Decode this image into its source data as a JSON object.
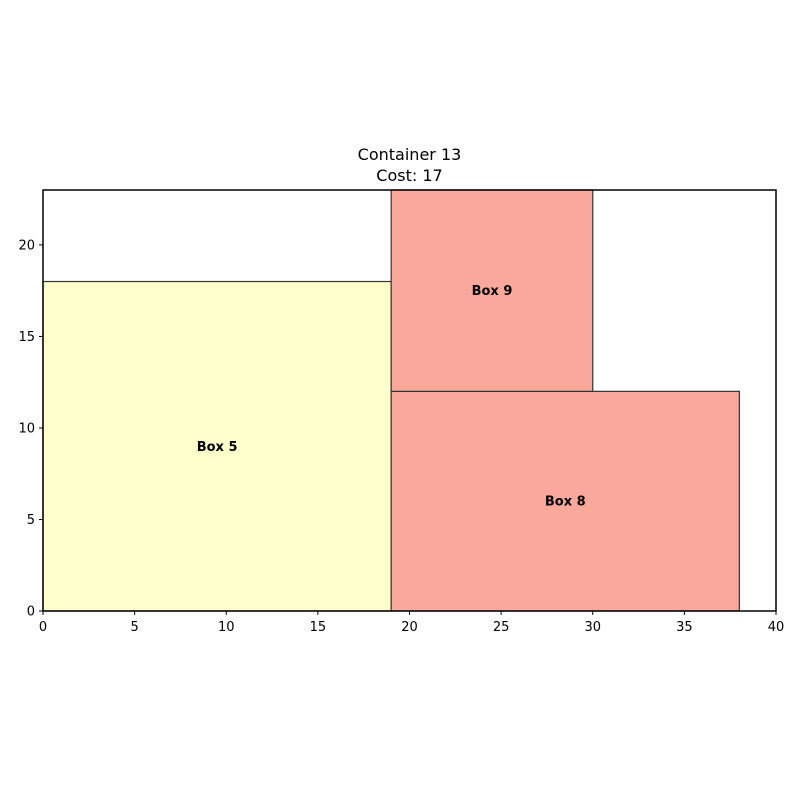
{
  "chart_data": {
    "type": "bar",
    "title": "Container 13",
    "subtitle": "Cost: 17",
    "xlim": [
      0,
      40
    ],
    "ylim": [
      0,
      23
    ],
    "x_ticks": [
      0,
      5,
      10,
      15,
      20,
      25,
      30,
      35,
      40
    ],
    "y_ticks": [
      0,
      5,
      10,
      15,
      20
    ],
    "grid": false,
    "boxes": [
      {
        "label": "Box 5",
        "x": 0,
        "y": 0,
        "width": 19,
        "height": 18,
        "color": "#ffffcc"
      },
      {
        "label": "Box 8",
        "x": 19,
        "y": 0,
        "width": 19,
        "height": 12,
        "color": "#fba89c"
      },
      {
        "label": "Box 9",
        "x": 19,
        "y": 12,
        "width": 11,
        "height": 11,
        "color": "#fba89c"
      }
    ]
  }
}
